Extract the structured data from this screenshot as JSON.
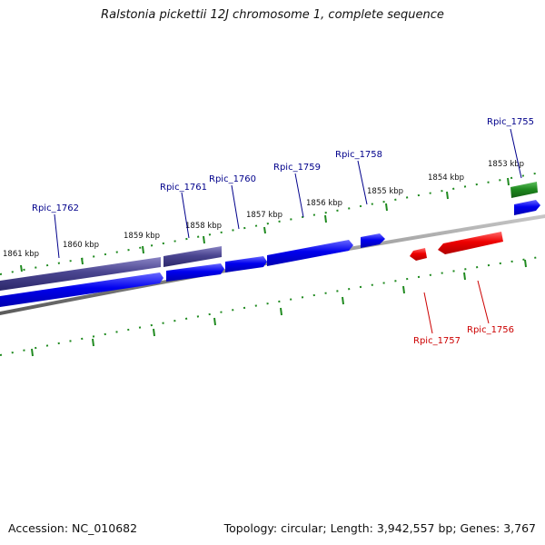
{
  "title": "Ralstonia pickettii 12J chromosome 1, complete sequence",
  "footer": {
    "accession": "Accession: NC_010682",
    "summary": "Topology: circular; Length: 3,942,557 bp; Genes: 3,767"
  },
  "colors": {
    "forward_gene": "#0000ee",
    "forward_gene_dark": "#3f3a8c",
    "reverse_gene": "#ee0000",
    "rna_gene": "#1f8a1f",
    "backbone": "#8c8c8c",
    "tick": "#1f8a1f",
    "forward_label": "#00008b",
    "reverse_label": "#cc0000"
  },
  "kbp_labels": [
    "1853 kbp",
    "1854 kbp",
    "1855 kbp",
    "1856 kbp",
    "1857 kbp",
    "1858 kbp",
    "1859 kbp",
    "1860 kbp",
    "1861 kbp"
  ],
  "gene_labels_forward": [
    "Rpic_1755",
    "Rpic_1758",
    "Rpic_1759",
    "Rpic_1760",
    "Rpic_1761",
    "Rpic_1762"
  ],
  "gene_labels_reverse": [
    "Rpic_1756",
    "Rpic_1757"
  ]
}
